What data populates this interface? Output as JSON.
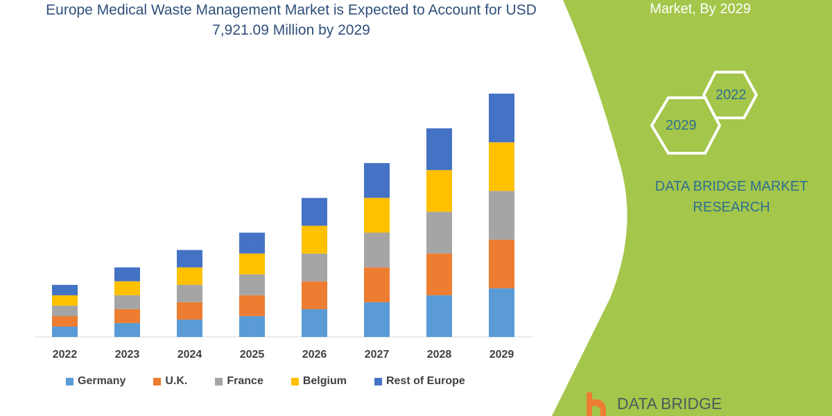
{
  "header": {
    "title": "Europe Medical Waste Management Market is Expected to Account for USD 7,921.09 Million by 2029",
    "side_title": "Market, By 2029"
  },
  "side": {
    "hex_years": [
      "2022",
      "2029"
    ],
    "brand": "DATA BRIDGE MARKET RESEARCH",
    "logo_text": "DATA BRIDGE"
  },
  "colors": {
    "panel": "#a4c64a",
    "title": "#2e4f7a",
    "brand": "#2e6f8e"
  },
  "chart_data": {
    "type": "bar",
    "stacked": true,
    "title": "Europe Medical Waste Management Market is Expected to Account for USD 7,921.09 Million by 2029",
    "categories": [
      "2022",
      "2023",
      "2024",
      "2025",
      "2026",
      "2027",
      "2028",
      "2029"
    ],
    "series": [
      {
        "name": "Germany",
        "color": "#5b9bd5",
        "values": [
          339,
          453,
          566,
          679,
          905,
          1132,
          1358,
          1584
        ]
      },
      {
        "name": "U.K.",
        "color": "#ed7d31",
        "values": [
          339,
          453,
          566,
          679,
          905,
          1132,
          1358,
          1584
        ]
      },
      {
        "name": "France",
        "color": "#a5a5a5",
        "values": [
          339,
          453,
          566,
          679,
          905,
          1132,
          1358,
          1584
        ]
      },
      {
        "name": "Belgium",
        "color": "#ffc000",
        "values": [
          339,
          453,
          566,
          679,
          905,
          1132,
          1358,
          1584
        ]
      },
      {
        "name": "Rest of Europe",
        "color": "#4472c4",
        "values": [
          339,
          453,
          566,
          679,
          905,
          1132,
          1358,
          1584
        ]
      }
    ],
    "ylim": [
      0,
      7921.09
    ],
    "grid": false,
    "legend": "bottom"
  }
}
